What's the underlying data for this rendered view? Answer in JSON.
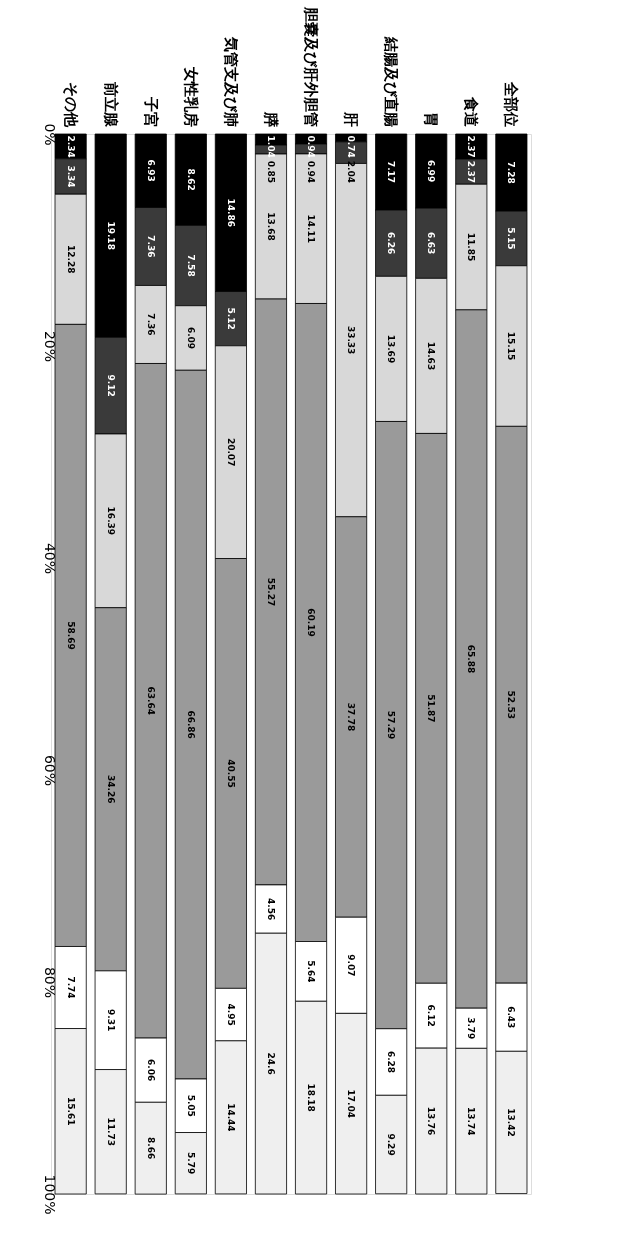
{
  "chart_data": {
    "type": "bar",
    "stacked": true,
    "data_labels": true,
    "grid": false,
    "categories": [
      "その他",
      "前立腺",
      "子宮",
      "女性乳房",
      "気管支及び肺",
      "膵",
      "胆嚢及び肝外胆管",
      "肝",
      "結腸及び直腸",
      "胃",
      "食道",
      "全部位"
    ],
    "ylim": [
      100,
      0
    ],
    "yticks": [
      {
        "value": 0,
        "label": "0%"
      },
      {
        "value": 20,
        "label": "20%"
      },
      {
        "value": 40,
        "label": "40%"
      },
      {
        "value": 60,
        "label": "60%"
      },
      {
        "value": 80,
        "label": "80%"
      },
      {
        "value": 100,
        "label": "100%"
      }
    ],
    "series": [
      {
        "color": "#000000",
        "values": [
          2.34,
          19.18,
          6.93,
          8.62,
          14.86,
          1.04,
          0.94,
          0.74,
          7.17,
          6.99,
          2.37,
          7.28
        ]
      },
      {
        "color": "#3a3a3a",
        "values": [
          3.34,
          9.12,
          7.36,
          7.58,
          5.12,
          0.85,
          0.94,
          2.04,
          6.26,
          6.63,
          2.37,
          5.15
        ]
      },
      {
        "color": "#d8d8d8",
        "values": [
          12.28,
          16.39,
          7.36,
          6.09,
          20.07,
          13.68,
          14.11,
          33.33,
          13.69,
          14.63,
          11.85,
          15.15
        ]
      },
      {
        "color": "#9a9a9a",
        "values": [
          58.69,
          34.26,
          63.64,
          66.86,
          40.55,
          55.27,
          60.19,
          37.78,
          57.29,
          51.87,
          65.88,
          52.53
        ]
      },
      {
        "color": "#ffffff",
        "values": [
          7.74,
          9.31,
          6.06,
          5.05,
          4.95,
          4.56,
          5.64,
          9.07,
          6.28,
          6.12,
          3.79,
          6.43
        ]
      },
      {
        "color": "#efefef",
        "values": [
          15.61,
          11.73,
          8.66,
          5.79,
          14.44,
          24.6,
          18.18,
          17.04,
          9.29,
          13.76,
          13.74,
          13.42
        ]
      }
    ]
  }
}
